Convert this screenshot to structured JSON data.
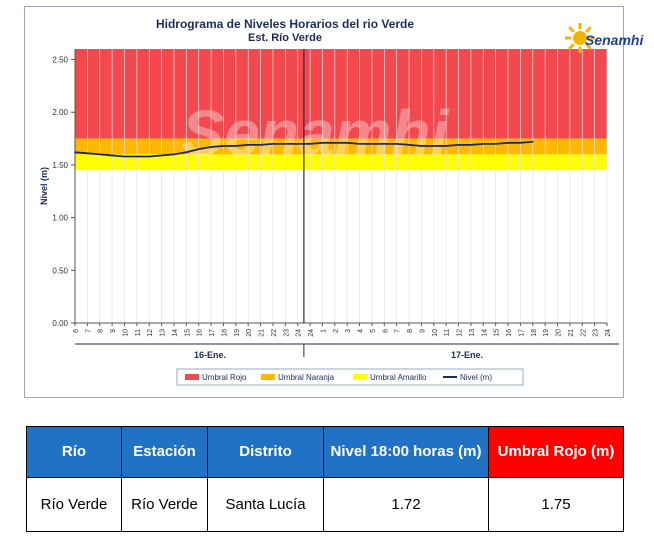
{
  "chart_data": {
    "type": "line",
    "title": "Hidrograma de Niveles Horarios del rio Verde",
    "subtitle": "Est. Río Verde",
    "ylabel": "Nivel (m)",
    "ylim": [
      0,
      2.6
    ],
    "yticks": [
      "0.00",
      "0.50",
      "1.00",
      "1.50",
      "2.00",
      "2.50"
    ],
    "x_tick_labels": [
      "6",
      "7",
      "8",
      "9",
      "10",
      "11",
      "12",
      "13",
      "14",
      "15",
      "16",
      "17",
      "18",
      "19",
      "20",
      "21",
      "22",
      "23",
      "24",
      "24",
      "1",
      "2",
      "3",
      "4",
      "5",
      "6",
      "7",
      "8",
      "9",
      "10",
      "11",
      "12",
      "13",
      "14",
      "15",
      "16",
      "17",
      "18",
      "19",
      "20",
      "21",
      "22",
      "23",
      "24"
    ],
    "day_labels": [
      "16-Ene.",
      "17-Ene."
    ],
    "thresholds": [
      {
        "name": "Umbral Rojo",
        "from": 1.75,
        "to": 2.6,
        "color": "#f2484e"
      },
      {
        "name": "Umbral Naranja",
        "from": 1.6,
        "to": 1.75,
        "color": "#ffb800"
      },
      {
        "name": "Umbral Amarillo",
        "from": 1.45,
        "to": 1.6,
        "color": "#ffff00"
      }
    ],
    "series": [
      {
        "name": "Nivel (m)",
        "color": "#1f2a5c",
        "values": [
          1.62,
          1.61,
          1.6,
          1.59,
          1.58,
          1.58,
          1.58,
          1.59,
          1.6,
          1.62,
          1.65,
          1.67,
          1.68,
          1.68,
          1.69,
          1.69,
          1.7,
          1.7,
          1.7,
          1.7,
          1.71,
          1.71,
          1.71,
          1.7,
          1.7,
          1.7,
          1.7,
          1.69,
          1.68,
          1.68,
          1.68,
          1.69,
          1.69,
          1.7,
          1.7,
          1.71,
          1.71,
          1.72
        ]
      }
    ],
    "legend": [
      "Umbral Rojo",
      "Umbral Naranja",
      "Umbral Amarillo",
      "Nivel (m)"
    ],
    "legend_position": "bottom",
    "grid": true
  },
  "logo": {
    "text": "Senamhi"
  },
  "watermark": "Senamhi",
  "table": {
    "headers": [
      "Río",
      "Estación",
      "Distrito",
      "Nivel 18:00 horas (m)",
      "Umbral Rojo (m)"
    ],
    "row": [
      "Río Verde",
      "Río Verde",
      "Santa Lucía",
      "1.72",
      "1.75"
    ]
  },
  "colors": {
    "header_blue": "#1f72c4",
    "header_red": "#ff0000"
  }
}
